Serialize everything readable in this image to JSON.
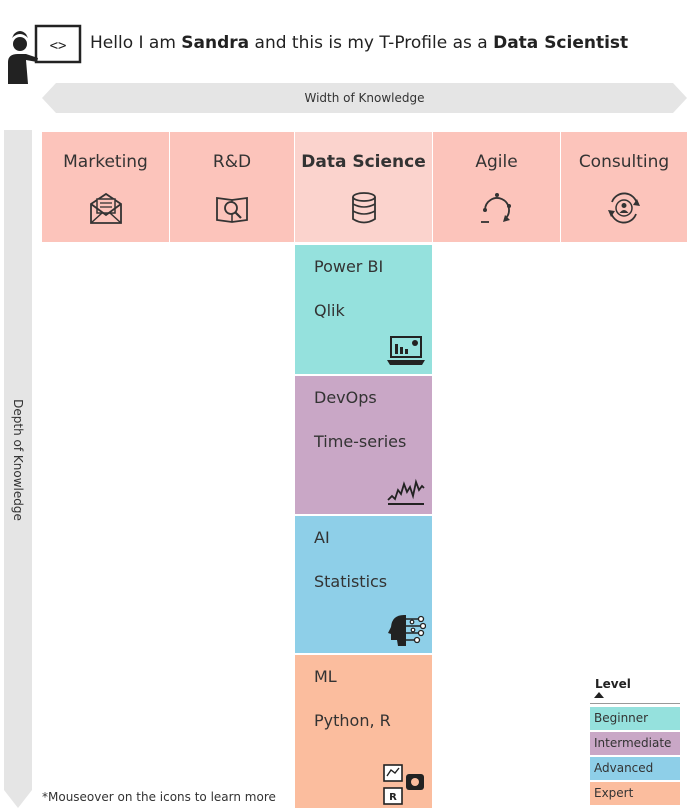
{
  "header": {
    "prefix": "Hello I am ",
    "name": "Sandra",
    "middle": " and this is my T-Profile as a ",
    "role": "Data Scientist"
  },
  "axes": {
    "width_label": "Width of Knowledge",
    "depth_label": "Depth of Knowledge"
  },
  "domains": [
    {
      "label": "Marketing",
      "icon": "newsletter-envelope-icon"
    },
    {
      "label": "R&D",
      "icon": "research-book-icon"
    },
    {
      "label": "Data Science",
      "icon": "database-icon"
    },
    {
      "label": "Agile",
      "icon": "agile-cycle-icon"
    },
    {
      "label": "Consulting",
      "icon": "consulting-person-cycle-icon"
    }
  ],
  "depth_blocks": [
    {
      "level": "Beginner",
      "line1": "Power BI",
      "line2": "Qlik",
      "icon": "laptop-dashboard-icon",
      "color": "#95e1dd"
    },
    {
      "level": "Intermediate",
      "line1": "DevOps",
      "line2": "Time-series",
      "icon": "time-series-chart-icon",
      "color": "#c9a7c6"
    },
    {
      "level": "Advanced",
      "line1": "AI",
      "line2": "Statistics",
      "icon": "ai-head-circuit-icon",
      "color": "#8ecfe8"
    },
    {
      "level": "Expert",
      "line1": "ML",
      "line2": "Python, R",
      "icon": "ml-python-icons",
      "color": "#fbbd9e"
    }
  ],
  "legend": {
    "title": "Level",
    "items": [
      "Beginner",
      "Intermediate",
      "Advanced",
      "Expert"
    ]
  },
  "footnote": "*Mouseover on the icons to learn more",
  "colors": {
    "domain_bg": "#fcc4bb",
    "arrow_gray": "#e5e5e5"
  }
}
